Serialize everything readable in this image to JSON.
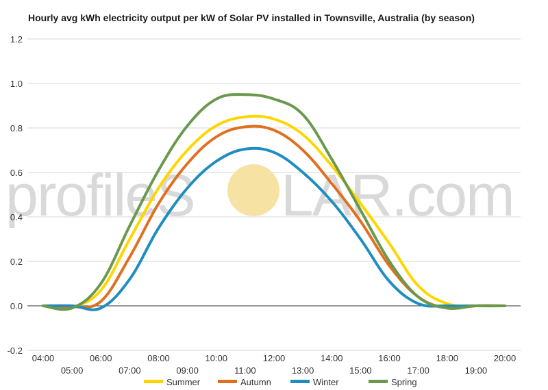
{
  "title": "Hourly avg kWh electricity output per kW of Solar PV installed in Townsville, Australia (by season)",
  "watermark": {
    "left_text": "profileS",
    "right_text": "LAR.com",
    "sun_color": "#f6e3a4"
  },
  "chart_data": {
    "type": "line",
    "title": "Hourly avg kWh electricity output per kW of Solar PV installed in Townsville, Australia (by season)",
    "xlabel": "",
    "ylabel": "",
    "x": [
      "04:00",
      "05:00",
      "06:00",
      "07:00",
      "08:00",
      "09:00",
      "10:00",
      "11:00",
      "12:00",
      "13:00",
      "14:00",
      "15:00",
      "16:00",
      "17:00",
      "18:00",
      "19:00",
      "20:00"
    ],
    "x_tick_labels_top": [
      "04:00",
      "06:00",
      "08:00",
      "10:00",
      "12:00",
      "14:00",
      "16:00",
      "18:00",
      "20:00"
    ],
    "x_tick_labels_bottom": [
      "05:00",
      "07:00",
      "09:00",
      "11:00",
      "13:00",
      "15:00",
      "17:00",
      "19:00"
    ],
    "ylim": [
      -0.2,
      1.2
    ],
    "yticks": [
      -0.2,
      0.0,
      0.2,
      0.4,
      0.6,
      0.8,
      1.0,
      1.2
    ],
    "grid": true,
    "legend_position": "bottom",
    "series": [
      {
        "name": "Summer",
        "color": "#ffd600",
        "values": [
          0.0,
          -0.005,
          0.07,
          0.3,
          0.53,
          0.7,
          0.81,
          0.85,
          0.84,
          0.77,
          0.63,
          0.46,
          0.28,
          0.09,
          0.01,
          0.0,
          0.0
        ]
      },
      {
        "name": "Autumn",
        "color": "#e07020",
        "values": [
          0.0,
          -0.005,
          0.02,
          0.22,
          0.46,
          0.64,
          0.76,
          0.805,
          0.79,
          0.7,
          0.55,
          0.38,
          0.18,
          0.04,
          -0.01,
          0.0,
          0.0
        ]
      },
      {
        "name": "Winter",
        "color": "#1f8dbf",
        "values": [
          0.0,
          0.0,
          -0.01,
          0.12,
          0.35,
          0.53,
          0.65,
          0.705,
          0.69,
          0.6,
          0.47,
          0.3,
          0.11,
          0.01,
          0.0,
          0.0,
          0.0
        ]
      },
      {
        "name": "Spring",
        "color": "#6a994e",
        "values": [
          0.0,
          -0.01,
          0.1,
          0.36,
          0.61,
          0.81,
          0.93,
          0.95,
          0.93,
          0.86,
          0.66,
          0.43,
          0.2,
          0.04,
          -0.01,
          0.0,
          0.0
        ]
      }
    ]
  }
}
